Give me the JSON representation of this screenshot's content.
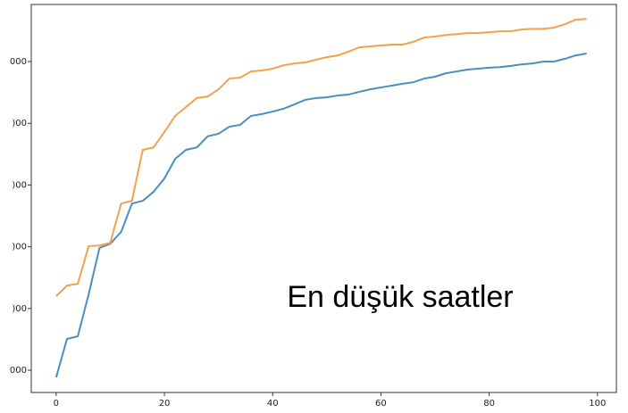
{
  "chart_data": {
    "type": "line",
    "annotation": "En düşük saatler",
    "x": [
      0,
      2,
      4,
      6,
      8,
      10,
      12,
      14,
      16,
      18,
      20,
      22,
      24,
      26,
      28,
      30,
      32,
      34,
      36,
      38,
      40,
      42,
      44,
      46,
      48,
      50,
      52,
      54,
      56,
      58,
      60,
      62,
      64,
      66,
      68,
      70,
      72,
      74,
      76,
      78,
      80,
      82,
      84,
      86,
      88,
      90,
      92,
      94,
      96,
      98
    ],
    "series": [
      {
        "color": "#4a8fc0",
        "values": [
          884,
          1506,
          1550,
          2228,
          2980,
          3050,
          3240,
          3700,
          3745,
          3890,
          4107,
          4425,
          4570,
          4610,
          4790,
          4830,
          4945,
          4975,
          5120,
          5150,
          5190,
          5235,
          5305,
          5380,
          5410,
          5420,
          5450,
          5465,
          5510,
          5550,
          5580,
          5610,
          5640,
          5665,
          5725,
          5755,
          5810,
          5840,
          5870,
          5885,
          5900,
          5910,
          5930,
          5955,
          5970,
          6000,
          6000,
          6045,
          6100,
          6130
        ]
      },
      {
        "color": "#f5a04a",
        "values": [
          2200,
          2370,
          2400,
          3010,
          3020,
          3065,
          3700,
          3745,
          4570,
          4610,
          4860,
          5120,
          5265,
          5410,
          5435,
          5550,
          5725,
          5740,
          5840,
          5855,
          5885,
          5940,
          5970,
          5985,
          6030,
          6070,
          6100,
          6160,
          6230,
          6245,
          6260,
          6275,
          6275,
          6320,
          6390,
          6405,
          6430,
          6445,
          6460,
          6460,
          6475,
          6490,
          6490,
          6520,
          6530,
          6530,
          6550,
          6605,
          6680,
          6690
        ]
      }
    ],
    "xlim": [
      -4.6,
      103.5
    ],
    "ylim": [
      639,
      6925
    ],
    "xticks": [
      0,
      20,
      40,
      60,
      80,
      100
    ],
    "yticks": [
      {
        "value": 1000,
        "label": "000"
      },
      {
        "value": 2000,
        "label": ")00"
      },
      {
        "value": 3000,
        "label": ")00"
      },
      {
        "value": 4000,
        "label": ")00"
      },
      {
        "value": 5000,
        "label": ")00"
      },
      {
        "value": 6000,
        "label": "000"
      }
    ]
  }
}
